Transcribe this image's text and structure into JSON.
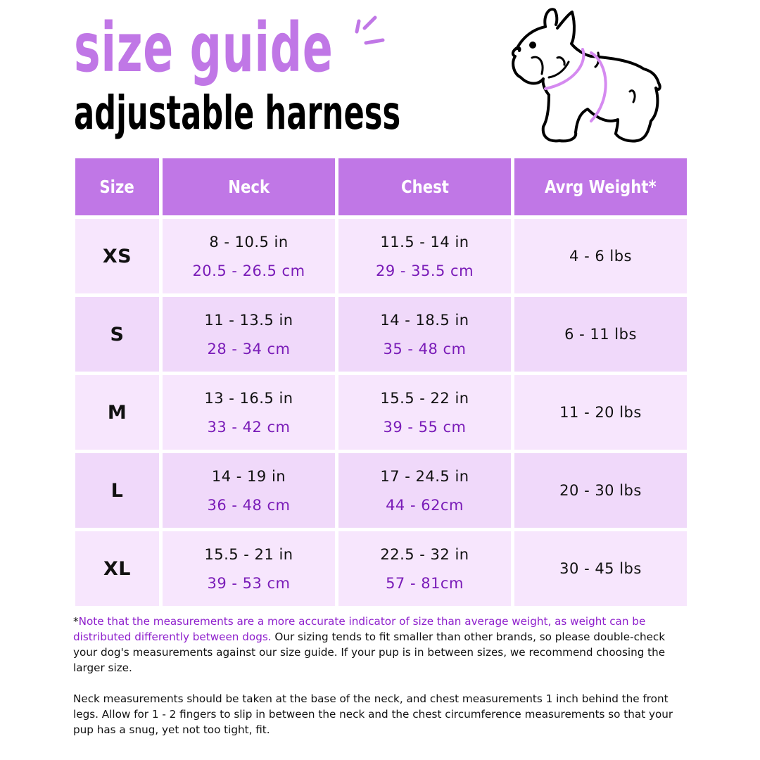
{
  "header": {
    "title": "size guide",
    "subtitle": "adjustable harness",
    "illustration_icon": "french-bulldog-harness-illustration"
  },
  "colors": {
    "accent": "#c077e6",
    "row_light": "#f7e6fd",
    "row_dark": "#f0d9fa",
    "metric_text": "#7a1cb8",
    "note_text": "#8e1fcc"
  },
  "table": {
    "columns": [
      "Size",
      "Neck",
      "Chest",
      "Avrg Weight*"
    ],
    "rows": [
      {
        "size": "XS",
        "neck_in": "8 - 10.5 in",
        "neck_cm": "20.5 - 26.5 cm",
        "chest_in": "11.5 - 14 in",
        "chest_cm": "29 - 35.5 cm",
        "weight": "4 - 6 lbs"
      },
      {
        "size": "S",
        "neck_in": "11 - 13.5 in",
        "neck_cm": "28 - 34 cm",
        "chest_in": "14 - 18.5 in",
        "chest_cm": "35 - 48 cm",
        "weight": "6 - 11 lbs"
      },
      {
        "size": "M",
        "neck_in": "13 - 16.5 in",
        "neck_cm": "33 - 42 cm",
        "chest_in": "15.5 - 22 in",
        "chest_cm": "39 - 55 cm",
        "weight": "11 - 20 lbs"
      },
      {
        "size": "L",
        "neck_in": "14 - 19 in",
        "neck_cm": "36 - 48 cm",
        "chest_in": "17 - 24.5 in",
        "chest_cm": "44 - 62cm",
        "weight": "20 - 30 lbs"
      },
      {
        "size": "XL",
        "neck_in": "15.5 - 21 in",
        "neck_cm": "39 - 53 cm",
        "chest_in": "22.5 - 32 in",
        "chest_cm": "57 - 81cm",
        "weight": "30 - 45 lbs"
      }
    ]
  },
  "notes": {
    "asterisk": "*",
    "highlight": "Note that the measurements are a more accurate indicator of size than average weight, as weight can be distributed differently between dogs.",
    "paragraph1_rest": " Our sizing tends to fit smaller than other brands, so please double-check your dog's measurements against our size guide. If your pup is in between sizes, we recommend choosing the larger size.",
    "paragraph2": "Neck measurements should be taken at the base of the neck, and chest measurements 1 inch behind the front legs. Allow for 1 - 2 fingers to slip in between the neck and the chest circumference measurements so that your pup has a snug, yet not too tight, fit."
  }
}
